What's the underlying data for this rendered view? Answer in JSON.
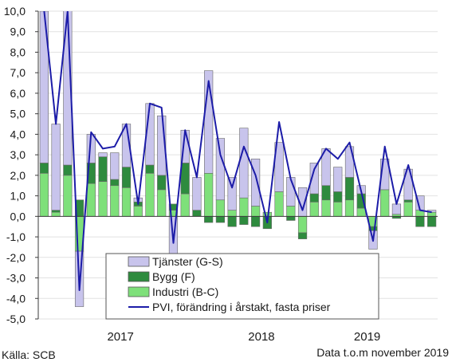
{
  "chart_data": {
    "type": "bar",
    "stacked": true,
    "ylim": [
      -5,
      10
    ],
    "ytick_labels": [
      "10,0",
      "9,0",
      "8,0",
      "7,0",
      "6,0",
      "5,0",
      "4,0",
      "3,0",
      "2,0",
      "1,0",
      "0,0",
      "-1,0",
      "-2,0",
      "-3,0",
      "-4,0",
      "-5,0"
    ],
    "yticks": [
      10,
      9,
      8,
      7,
      6,
      5,
      4,
      3,
      2,
      1,
      0,
      -1,
      -2,
      -3,
      -4,
      -5
    ],
    "year_labels": [
      {
        "text": "2017",
        "center_index": 6.5
      },
      {
        "text": "2018",
        "center_index": 18.5
      },
      {
        "text": "2019",
        "center_index": 27.5
      }
    ],
    "grid": true,
    "legend_position": "bottom-center",
    "series": [
      {
        "name": "Industri (B-C)",
        "color": "#7ee07a",
        "values": [
          2.1,
          0.2,
          2.0,
          -1.7,
          1.6,
          1.7,
          1.5,
          1.4,
          0.5,
          2.1,
          1.3,
          0.3,
          1.1,
          0.0,
          2.1,
          0.8,
          0.3,
          0.9,
          0.5,
          0.2,
          1.2,
          0.5,
          -0.8,
          0.7,
          0.8,
          0.7,
          0.8,
          0.4,
          -0.5,
          1.3,
          0.1,
          0.7,
          0.3,
          0.2
        ]
      },
      {
        "name": "Bygg (F)",
        "color": "#2e8b3e",
        "values": [
          0.5,
          0.1,
          0.5,
          0.8,
          1.0,
          1.2,
          0.3,
          1.0,
          0.2,
          0.4,
          0.7,
          0.3,
          1.5,
          0.3,
          -0.3,
          -0.3,
          -0.5,
          -0.4,
          -0.5,
          -0.6,
          0.0,
          -0.2,
          -0.3,
          0.4,
          0.7,
          0.5,
          1.1,
          0.7,
          -0.2,
          0.0,
          -0.1,
          0.1,
          -0.5,
          -0.5
        ]
      },
      {
        "name": "Tjänster (G-S)",
        "color": "#c8c4ec",
        "values": [
          7.4,
          4.2,
          8.0,
          -2.7,
          1.4,
          0.2,
          1.3,
          2.1,
          0.2,
          3.0,
          2.9,
          -2.2,
          1.6,
          1.6,
          5.0,
          3.0,
          1.6,
          3.4,
          2.3,
          0.0,
          2.4,
          1.4,
          1.4,
          1.5,
          1.8,
          1.2,
          1.5,
          0.4,
          -0.9,
          1.5,
          0.5,
          1.5,
          0.7,
          0.1
        ]
      }
    ],
    "line_series": {
      "name": "PVI, förändring i årstakt, fasta priser",
      "color": "#1c1ca8",
      "values": [
        10.0,
        4.5,
        10.0,
        -3.6,
        4.1,
        3.3,
        3.4,
        4.5,
        0.6,
        5.5,
        5.3,
        -1.3,
        4.2,
        1.9,
        6.6,
        3.0,
        1.4,
        3.4,
        2.0,
        -0.3,
        4.6,
        1.8,
        0.3,
        2.3,
        3.3,
        2.8,
        3.6,
        1.2,
        -1.2,
        3.4,
        0.6,
        2.5,
        0.3,
        0.2
      ]
    }
  },
  "legend": {
    "items": [
      {
        "label": "Tjänster (G-S)",
        "type": "box",
        "color": "#c8c4ec"
      },
      {
        "label": "Bygg (F)",
        "type": "box",
        "color": "#2e8b3e"
      },
      {
        "label": "Industri (B-C)",
        "type": "box",
        "color": "#7ee07a"
      },
      {
        "label": "PVI, förändring i årstakt, fasta priser",
        "type": "line",
        "color": "#1c1ca8"
      }
    ]
  },
  "footer": {
    "source": "Källa: SCB",
    "data_note": "Data t.o.m november 2019"
  }
}
